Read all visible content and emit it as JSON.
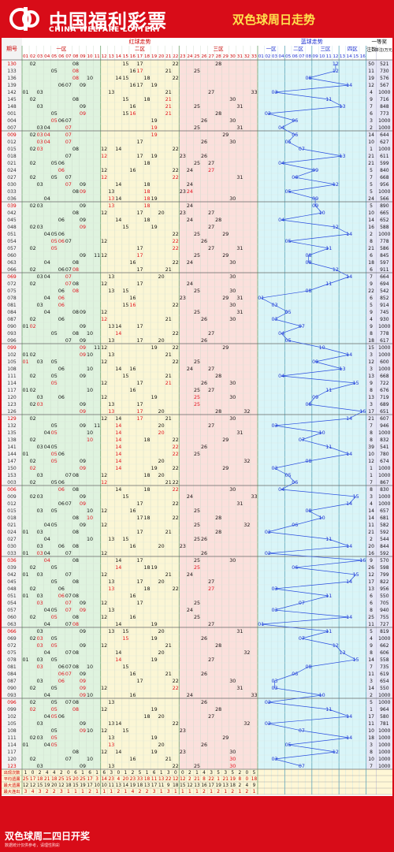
{
  "header": {
    "logo_cn": "中国福利彩票",
    "logo_en": "CHINA WELFARE LOTTERY",
    "title": "双色球周日走势"
  },
  "footer": {
    "main": "双色球周二四日开奖",
    "sub": "数据统计仅供参考，请理性购彩"
  },
  "colors": {
    "brand_red": "#d80c18",
    "title_yellow": "#ffe14d",
    "zone1": "#dff3df",
    "zone2": "#fbf6d5",
    "zone3": "#fbe0dc",
    "blue_zone": "#d9f5f8",
    "prize_zone": "#e6e6f5",
    "red_number": "#e0101c",
    "blue_number": "#1c2fd0",
    "blue_line": "#2a4fe0"
  },
  "chart_data": {
    "type": "table",
    "headers": {
      "issue": "期号",
      "red_trend": "红球走势",
      "zone1": "一区",
      "zone2": "二区",
      "zone3": "三区",
      "blue_trend": "蓝球走势",
      "blue_zones": [
        "一区",
        "二区",
        "三区",
        "四区"
      ],
      "prize": "一等奖",
      "count": "注数",
      "unit": "单注(万元)"
    },
    "issues": [
      "130",
      "133",
      "136",
      "139",
      "142",
      "145",
      "148",
      "001",
      "004",
      "007",
      "009",
      "012",
      "015",
      "018",
      "021",
      "024",
      "027",
      "030",
      "033",
      "036",
      "039",
      "042",
      "045",
      "048",
      "051",
      "054",
      "057",
      "060",
      "063",
      "066",
      "069",
      "072",
      "075",
      "078",
      "081",
      "084",
      "087",
      "090",
      "093",
      "096",
      "099",
      "102",
      "105",
      "108",
      "111",
      "114",
      "117",
      "120",
      "123",
      "126",
      "129",
      "132",
      "135",
      "138",
      "141",
      "144",
      "147",
      "150",
      "153",
      "003",
      "006",
      "009",
      "012",
      "015",
      "018",
      "021",
      "024",
      "027",
      "030",
      "033",
      "036",
      "039",
      "042",
      "045",
      "048",
      "051",
      "054",
      "057",
      "060",
      "063",
      "066",
      "069",
      "072",
      "075",
      "078",
      "081",
      "084",
      "087",
      "090",
      "093",
      "096",
      "099",
      "102",
      "105",
      "108",
      "111",
      "114",
      "117",
      "120",
      "123"
    ],
    "reds": [
      [
        2,
        8,
        15,
        17,
        22,
        28
      ],
      [
        5,
        8,
        16,
        17,
        21,
        25
      ],
      [
        8,
        10,
        14,
        15,
        18,
        22
      ],
      [
        6,
        7,
        9,
        16,
        17,
        19
      ],
      [
        1,
        3,
        13,
        21,
        27,
        33
      ],
      [
        2,
        8,
        15,
        18,
        21,
        30
      ],
      [
        3,
        9,
        16,
        21,
        25,
        31
      ],
      [
        5,
        9,
        15,
        16,
        21,
        28
      ],
      [
        5,
        6,
        7,
        19,
        26,
        30
      ],
      [
        3,
        4,
        7,
        19,
        25,
        31
      ],
      [
        2,
        3,
        4,
        7,
        19,
        29
      ],
      [
        3,
        4,
        7,
        17,
        26,
        30
      ],
      [
        2,
        3,
        8,
        12,
        14,
        22
      ],
      [
        7,
        12,
        17,
        19,
        23,
        26
      ],
      [
        2,
        5,
        6,
        18,
        25,
        27
      ],
      [
        6,
        12,
        16,
        22,
        24,
        27
      ],
      [
        2,
        5,
        7,
        12,
        22,
        31
      ],
      [
        3,
        7,
        9,
        14,
        18,
        24
      ],
      [
        8,
        9,
        13,
        18,
        23,
        24
      ],
      [
        4,
        13,
        14,
        18,
        19,
        30
      ],
      [
        2,
        3,
        9,
        13,
        18,
        24
      ],
      [
        8,
        12,
        17,
        20,
        23,
        27
      ],
      [
        6,
        9,
        14,
        18,
        24,
        28
      ],
      [
        2,
        3,
        9,
        15,
        19,
        27
      ],
      [
        4,
        5,
        6,
        22,
        25,
        29
      ],
      [
        5,
        6,
        7,
        12,
        22,
        26
      ],
      [
        2,
        5,
        17,
        22,
        27,
        31
      ],
      [
        9,
        11,
        12,
        17,
        25,
        29
      ],
      [
        4,
        8,
        16,
        22,
        24,
        30
      ],
      [
        2,
        6,
        7,
        8,
        17,
        21
      ],
      [
        3,
        4,
        7,
        13,
        20,
        30
      ],
      [
        2,
        7,
        8,
        12,
        17,
        24
      ],
      [
        6,
        8,
        13,
        15,
        25,
        30
      ],
      [
        4,
        6,
        16,
        23,
        29,
        31
      ],
      [
        3,
        6,
        15,
        16,
        22,
        30
      ],
      [
        4,
        8,
        9,
        12,
        25,
        31
      ],
      [
        2,
        6,
        12,
        21,
        26,
        30
      ],
      [
        1,
        2,
        9,
        13,
        14,
        17
      ],
      [
        5,
        8,
        10,
        14,
        22,
        27
      ],
      [
        7,
        9,
        13,
        17,
        20,
        26
      ],
      [
        9,
        11,
        12,
        19,
        22,
        29
      ],
      [
        1,
        2,
        9,
        10,
        13,
        21
      ],
      [
        1,
        3,
        5,
        12,
        22,
        25
      ],
      [
        6,
        10,
        14,
        16,
        24,
        27
      ],
      [
        2,
        5,
        9,
        15,
        21,
        28
      ],
      [
        5,
        12,
        17,
        21,
        26,
        30
      ],
      [
        1,
        2,
        10,
        16,
        25,
        27
      ],
      [
        3,
        6,
        12,
        19,
        25,
        30
      ],
      [
        2,
        3,
        9,
        13,
        17,
        25
      ],
      [
        9,
        13,
        17,
        20,
        28,
        32
      ],
      [
        2,
        12,
        14,
        17,
        21,
        30
      ],
      [
        5,
        9,
        11,
        14,
        20,
        27
      ],
      [
        4,
        5,
        10,
        14,
        20,
        31
      ],
      [
        2,
        10,
        14,
        18,
        22,
        29
      ],
      [
        3,
        4,
        5,
        14,
        22,
        26
      ],
      [
        1,
        5,
        6,
        14,
        22,
        25
      ],
      [
        2,
        5,
        9,
        14,
        20,
        32
      ],
      [
        2,
        9,
        14,
        19,
        22,
        29
      ],
      [
        3,
        7,
        8,
        12,
        18,
        20
      ],
      [
        2,
        5,
        6,
        12,
        21,
        22
      ],
      [
        6,
        8,
        14,
        18,
        22,
        30
      ],
      [
        2,
        3,
        9,
        15,
        24,
        33
      ],
      [
        6,
        7,
        9,
        17,
        22,
        31
      ],
      [
        3,
        5,
        10,
        12,
        16,
        25
      ],
      [
        8,
        10,
        17,
        18,
        22,
        28
      ],
      [
        4,
        5,
        9,
        12,
        25,
        32
      ],
      [
        1,
        3,
        8,
        17,
        21,
        28
      ],
      [
        4,
        10,
        13,
        15,
        25,
        26
      ],
      [
        3,
        6,
        8,
        16,
        20,
        23
      ],
      [
        1,
        3,
        4,
        7,
        12,
        26
      ],
      [
        4,
        8,
        14,
        17,
        25,
        30
      ],
      [
        2,
        5,
        14,
        18,
        19,
        25
      ],
      [
        1,
        3,
        7,
        12,
        21,
        24
      ],
      [
        5,
        8,
        13,
        17,
        20,
        27
      ],
      [
        2,
        6,
        13,
        18,
        22,
        27
      ],
      [
        1,
        3,
        6,
        7,
        8,
        16
      ],
      [
        3,
        7,
        9,
        12,
        17,
        25
      ],
      [
        4,
        5,
        7,
        9,
        13,
        24
      ],
      [
        2,
        5,
        8,
        12,
        16,
        25
      ],
      [
        4,
        7,
        8,
        14,
        19,
        27
      ],
      [
        3,
        9,
        13,
        15,
        20,
        31
      ],
      [
        2,
        3,
        5,
        15,
        19,
        26
      ],
      [
        3,
        5,
        9,
        12,
        21,
        28
      ],
      [
        4,
        7,
        8,
        14,
        20,
        32
      ],
      [
        1,
        3,
        5,
        14,
        19,
        27
      ],
      [
        3,
        6,
        7,
        8,
        10,
        15
      ],
      [
        6,
        7,
        9,
        16,
        21,
        26
      ],
      [
        3,
        6,
        9,
        17,
        22,
        30
      ],
      [
        2,
        5,
        9,
        12,
        22,
        31
      ],
      [
        4,
        9,
        10,
        16,
        24,
        33
      ],
      [
        2,
        5,
        7,
        8,
        13,
        26
      ],
      [
        2,
        5,
        8,
        12,
        19,
        28
      ],
      [
        4,
        5,
        6,
        18,
        20,
        27
      ],
      [
        3,
        9,
        13,
        14,
        22,
        32
      ],
      [
        5,
        9,
        10,
        12,
        15,
        23
      ],
      [
        2,
        3,
        5,
        13,
        19,
        29
      ],
      [
        1,
        4,
        5,
        13,
        20,
        26
      ],
      [
        8,
        12,
        14,
        19,
        23,
        30
      ],
      [
        2,
        7,
        10,
        16,
        21,
        30
      ],
      [
        3,
        9,
        13,
        22,
        25,
        30
      ],
      [
        3,
        5,
        9,
        13,
        24,
        26
      ],
      [
        2,
        4,
        11,
        18,
        22,
        30
      ],
      [
        5,
        8,
        12,
        15,
        19,
        23
      ]
    ],
    "blue": [
      12,
      12,
      8,
      14,
      3,
      11,
      13,
      2,
      6,
      4,
      6,
      5,
      7,
      13,
      4,
      9,
      6,
      12,
      5,
      9,
      9,
      10,
      4,
      12,
      14,
      5,
      11,
      8,
      8,
      12,
      14,
      11,
      8,
      1,
      3,
      5,
      3,
      7,
      4,
      5,
      10,
      14,
      9,
      13,
      4,
      15,
      11,
      9,
      8,
      16,
      14,
      3,
      10,
      7,
      11,
      14,
      8,
      3,
      5,
      6,
      4,
      15,
      14,
      8,
      10,
      6,
      2,
      11,
      14,
      2,
      16,
      6,
      15,
      14,
      3,
      11,
      7,
      3,
      14,
      1,
      11,
      7,
      12,
      13,
      15,
      8,
      6,
      3,
      3,
      10,
      2,
      11,
      14,
      2,
      7,
      14,
      5,
      12,
      3,
      7
    ],
    "prize_count": [
      50,
      11,
      19,
      12,
      4,
      9,
      7,
      6,
      3,
      2,
      14,
      10,
      1,
      21,
      21,
      5,
      7,
      5,
      5,
      24,
      5,
      10,
      14,
      16,
      2,
      8,
      21,
      6,
      18,
      6,
      7,
      9,
      22,
      6,
      5,
      9,
      4,
      9,
      8,
      18,
      15,
      3,
      12,
      3,
      13,
      9,
      8,
      13,
      3,
      17,
      21,
      7,
      8,
      8,
      39,
      10,
      12,
      1,
      1,
      7,
      8,
      3,
      4,
      14,
      14,
      11,
      21,
      2,
      20,
      16,
      9,
      26,
      12,
      17,
      13,
      6,
      6,
      8,
      25,
      11,
      5,
      4,
      9,
      8,
      14,
      7,
      11,
      3,
      14,
      2,
      5,
      1,
      17,
      11,
      10,
      18,
      3,
      8,
      10,
      7
    ],
    "prize_unit": [
      521,
      730,
      576,
      567,
      1000,
      716,
      848,
      773,
      1000,
      1000,
      644,
      627,
      1000,
      611,
      599,
      840,
      668,
      956,
      1000,
      566,
      890,
      665,
      652,
      588,
      1000,
      778,
      586,
      845,
      597,
      911,
      664,
      694,
      542,
      852,
      914,
      745,
      930,
      1000,
      778,
      617,
      1000,
      1000,
      600,
      1000,
      668,
      722,
      676,
      719,
      689,
      651,
      607,
      946,
      1000,
      832,
      541,
      780,
      674,
      1000,
      1000,
      867,
      830,
      1000,
      1000,
      657,
      681,
      582,
      592,
      544,
      844,
      592,
      570,
      598,
      799,
      822,
      956,
      550,
      705,
      940,
      755,
      727,
      819,
      1000,
      662,
      606,
      558,
      735,
      619,
      654,
      550,
      1000,
      1000,
      964,
      580,
      781,
      1000,
      1000,
      1000,
      1000,
      1000,
      1000
    ],
    "stats": [
      {
        "label": "出现次数",
        "values": [
          1,
          0,
          2,
          4,
          4,
          2,
          0,
          6,
          1,
          6,
          1,
          6,
          3,
          0,
          1,
          2,
          5,
          1,
          6,
          1,
          3,
          0,
          0,
          2,
          1,
          4,
          3,
          5,
          3,
          5,
          2,
          0,
          5
        ]
      },
      {
        "label": "平均遗漏",
        "values": [
          25,
          17,
          18,
          21,
          18,
          25,
          15,
          20,
          25,
          17,
          3,
          14,
          23,
          4,
          20,
          23,
          33,
          18,
          11,
          13,
          22,
          12,
          12,
          2,
          21,
          8,
          22,
          1,
          21,
          19,
          8,
          0,
          18
        ]
      },
      {
        "label": "最大遗漏",
        "values": [
          12,
          12,
          15,
          19,
          20,
          12,
          18,
          15,
          19,
          17,
          10,
          10,
          11,
          13,
          14,
          19,
          18,
          13,
          17,
          11,
          9,
          18,
          15,
          12,
          13,
          16,
          17,
          19,
          13,
          18,
          2,
          4,
          9
        ]
      },
      {
        "label": "最大连出",
        "values": [
          3,
          4,
          3,
          2,
          2,
          3,
          1,
          1,
          1,
          2,
          1,
          1,
          1,
          2,
          1,
          4,
          2,
          2,
          3,
          1,
          3,
          1,
          1,
          1,
          1,
          2,
          1,
          2,
          1,
          2,
          1,
          2,
          1
        ]
      }
    ]
  }
}
